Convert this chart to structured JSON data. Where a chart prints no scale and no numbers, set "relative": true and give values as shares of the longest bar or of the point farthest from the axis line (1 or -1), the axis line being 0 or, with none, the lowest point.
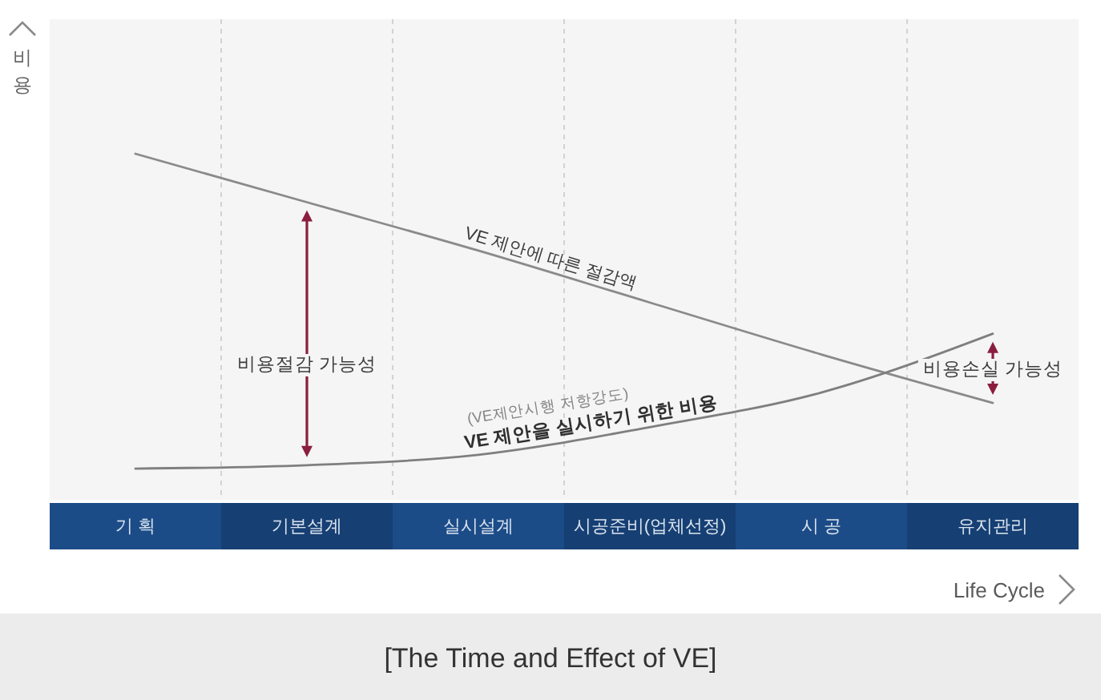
{
  "chart_data": {
    "type": "line",
    "relative": true,
    "title": "[The Time and Effect of VE]",
    "xlabel": "Life Cycle",
    "ylabel": "비용",
    "categories": [
      "기 획",
      "기본설계",
      "실시설계",
      "시공준비(업체선정)",
      "시 공",
      "유지관리"
    ],
    "series": [
      {
        "name": "VE 제안에 따른 절감액",
        "color": "#8a8a8a",
        "values": [
          1,
          0.86,
          0.72,
          0.57,
          0.42,
          0.28
        ]
      },
      {
        "name": "VE 제안을 실시하기 위한 비용",
        "color": "#7f7f7f",
        "values": [
          0.09,
          0.1,
          0.13,
          0.21,
          0.31,
          0.48
        ]
      }
    ],
    "annotations": [
      "(VE제안시행 저항강도)",
      "비용절감 가능성",
      "비용손실 가능성"
    ],
    "grid": "x"
  }
}
